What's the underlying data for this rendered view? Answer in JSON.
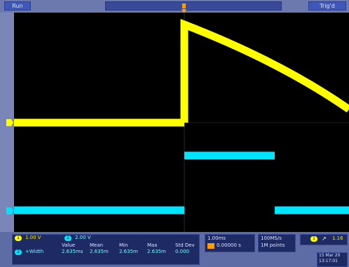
{
  "top_bar": {
    "acq_state": "Run",
    "trigger_state": "Trig'd"
  },
  "channels": [
    {
      "number": "1",
      "color": "#ffff00",
      "scale": "1.00 V"
    },
    {
      "number": "2",
      "color": "#00e5ff",
      "scale": "2.00 V"
    }
  ],
  "measurements": {
    "headers": [
      "Value",
      "Mean",
      "Min",
      "Max",
      "Std Dev"
    ],
    "row": {
      "channel": "2",
      "name": "+Width",
      "values": [
        "2.635ms",
        "2.635m",
        "2.635m",
        "2.635m",
        "0.000"
      ]
    }
  },
  "timebase": {
    "scale": "1.00ms",
    "position": "0.00000 s"
  },
  "acquisition": {
    "rate": "100MS/s",
    "record_length": "1M points"
  },
  "trigger": {
    "source": "1",
    "slope_symbol": "↗",
    "level": "1.16"
  },
  "datetime": {
    "date": "15 Mar 20",
    "time": "13:17:01"
  }
}
